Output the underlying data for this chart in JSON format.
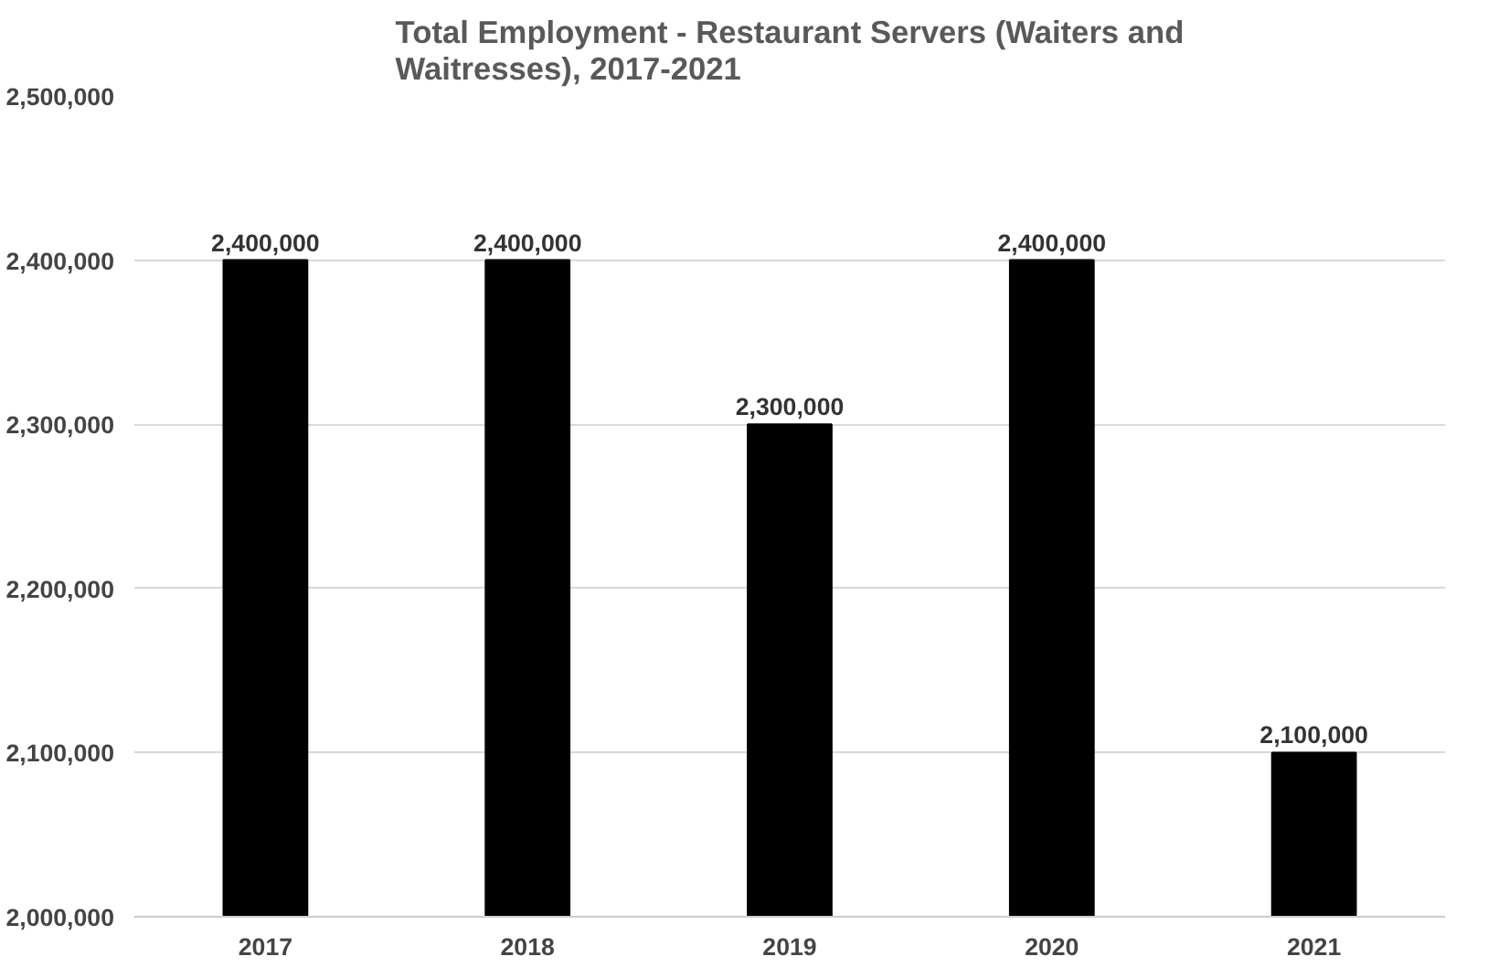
{
  "chart_data": {
    "type": "bar",
    "title": "Total Employment - Restaurant Servers (Waiters and Waitresses), 2017-2021",
    "categories": [
      "2017",
      "2018",
      "2019",
      "2020",
      "2021"
    ],
    "values": [
      2400000,
      2400000,
      2300000,
      2400000,
      2100000
    ],
    "color": "#000000",
    "ylim": [
      2000000,
      2500000
    ],
    "yticks": [
      {
        "value": 2000000,
        "label": "2,000,000"
      },
      {
        "value": 2100000,
        "label": "2,100,000"
      },
      {
        "value": 2200000,
        "label": "2,200,000"
      },
      {
        "value": 2300000,
        "label": "2,300,000"
      },
      {
        "value": 2400000,
        "label": "2,400,000"
      },
      {
        "value": 2500000,
        "label": "2,500,000"
      }
    ],
    "value_labels": [
      "2,400,000",
      "2,400,000",
      "2,300,000",
      "2,400,000",
      "2,100,000"
    ],
    "grid": "y"
  }
}
